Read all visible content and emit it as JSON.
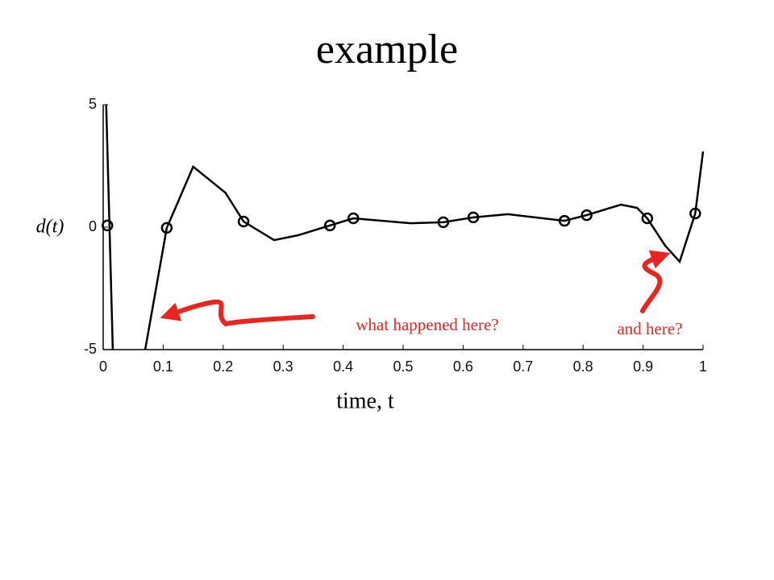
{
  "chart_data": {
    "type": "line",
    "title": "example",
    "xlabel": "time, t",
    "ylabel": "d(t)",
    "xlim": [
      0,
      1
    ],
    "ylim": [
      -5,
      5
    ],
    "xticks": [
      0,
      0.1,
      0.2,
      0.3,
      0.4,
      0.5,
      0.6,
      0.7,
      0.8,
      0.9,
      1
    ],
    "yticks": [
      -5,
      0,
      5
    ],
    "series": [
      {
        "color": "#000000",
        "style": "line",
        "x": [
          0.005,
          0.016,
          null,
          0.07,
          0.106,
          0.15,
          0.204,
          0.234,
          0.285,
          0.325,
          0.378,
          0.417,
          0.513,
          0.567,
          0.617,
          0.675,
          0.769,
          0.806,
          0.863,
          0.89,
          0.907,
          0.937,
          0.961,
          0.987,
          1.0
        ],
        "values": [
          5,
          -5,
          null,
          -5,
          -0.03,
          2.47,
          1.4,
          0.23,
          -0.53,
          -0.33,
          0.07,
          0.36,
          0.16,
          0.2,
          0.4,
          0.53,
          0.26,
          0.49,
          0.92,
          0.79,
          0.36,
          -0.76,
          -1.41,
          0.56,
          3.09
        ]
      },
      {
        "color": "#000000",
        "style": "marker",
        "x": [
          0.007,
          0.106,
          0.234,
          0.378,
          0.417,
          0.567,
          0.617,
          0.769,
          0.806,
          0.907,
          0.987
        ],
        "values": [
          0.07,
          -0.03,
          0.23,
          0.07,
          0.36,
          0.2,
          0.4,
          0.26,
          0.49,
          0.36,
          0.56
        ]
      }
    ],
    "annotations": [
      {
        "text": "what happened here?",
        "color": "#e8251f"
      },
      {
        "text": "and here?",
        "color": "#e8251f"
      }
    ]
  }
}
